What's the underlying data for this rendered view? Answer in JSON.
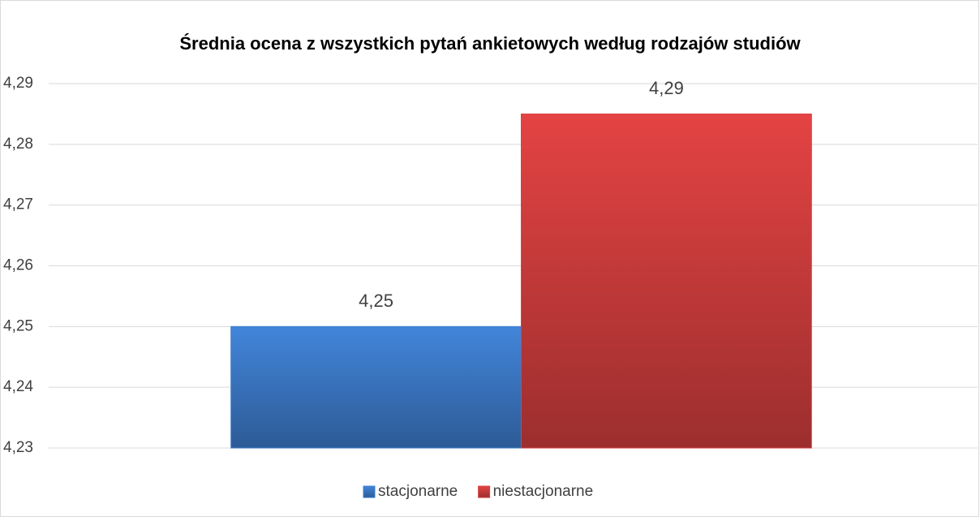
{
  "chart_data": {
    "type": "bar",
    "title": "Średnia ocena z wszystkich pytań ankietowych według rodzajów studiów",
    "categories": [
      null
    ],
    "series": [
      {
        "name": "stacjonarne",
        "color": "#3f7fd0",
        "values": [
          4.25
        ],
        "value_labels": [
          "4,25"
        ]
      },
      {
        "name": "niestacjonarne",
        "color": "#d94040",
        "values": [
          4.285
        ],
        "value_labels": [
          "4,29"
        ]
      }
    ],
    "ylim": [
      4.23,
      4.29
    ],
    "yticks": [
      {
        "value": 4.23,
        "label": "4,23"
      },
      {
        "value": 4.24,
        "label": "4,24"
      },
      {
        "value": 4.25,
        "label": "4,25"
      },
      {
        "value": 4.26,
        "label": "4,26"
      },
      {
        "value": 4.27,
        "label": "4,27"
      },
      {
        "value": 4.28,
        "label": "4,28"
      },
      {
        "value": 4.29,
        "label": "4,29"
      }
    ],
    "grid": true,
    "legend": "bottom"
  }
}
